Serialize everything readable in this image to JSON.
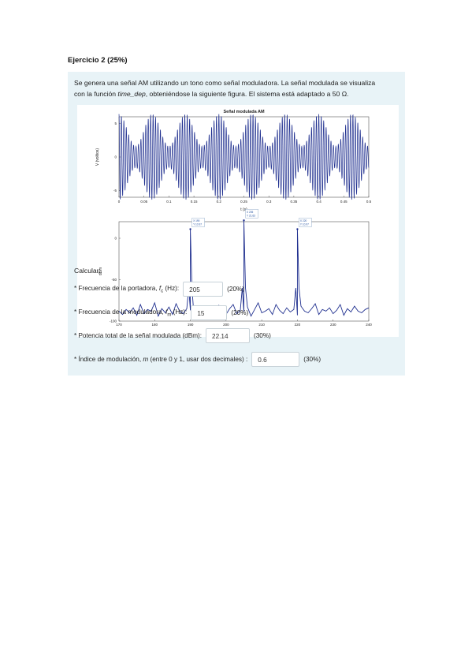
{
  "exercise": {
    "title": "Ejercicio 2 (25%)",
    "intro_line1": "Se genera una señal AM utilizando un tono como señal moduladora. La señal modulada se visualiza",
    "intro_line2_a": "con la función ",
    "intro_line2_fn": "time_dep",
    "intro_line2_b": ", obteniéndose la siguiente figura. El sistema está adaptado a 50 Ω.",
    "calcular": "Calcular:"
  },
  "questions": [
    {
      "label_pre": "* Frecuencia de la portadora, ",
      "var": "f",
      "sub": "c",
      "label_post": " (Hz):",
      "answer": "205",
      "weight": "(20%)"
    },
    {
      "label_pre": "* Frecuencia de la moduladora, ",
      "var": "f",
      "sub": "m",
      "label_post": " (Hz):",
      "answer": "15",
      "weight": "(20%)"
    },
    {
      "label_pre": "* Potencia total de la señal modulada (dBm):",
      "var": "",
      "sub": "",
      "label_post": "",
      "answer": "22.14",
      "weight": "(30%)"
    },
    {
      "label_pre": "* Índice de modulación, ",
      "var": "m",
      "sub": "",
      "label_post": " (entre 0 y 1, usar dos decimales) :",
      "answer": "0.6",
      "weight": "(30%)"
    }
  ],
  "chart_data": [
    {
      "type": "line",
      "title": "Señal modulada AM",
      "xlabel": "t (s)",
      "ylabel": "V (voltios)",
      "xlim": [
        0,
        0.5
      ],
      "ylim": [
        -6,
        6
      ],
      "x_ticks": [
        "0",
        "0.05",
        "0.1",
        "0.15",
        "0.2",
        "0.25",
        "0.3",
        "0.35",
        "0.4",
        "0.45",
        "0.5"
      ],
      "y_ticks": [
        "5",
        "0",
        "-5"
      ],
      "carrier_hz": 205,
      "modulating_hz": 15,
      "amplitude": 4,
      "modulation_index": 0.6,
      "color": "#1f2f8f"
    },
    {
      "type": "line",
      "xlabel": "Hz",
      "ylabel": "dBm",
      "xlim": [
        170,
        240
      ],
      "ylim": [
        -100,
        20
      ],
      "x_ticks": [
        "170",
        "180",
        "190",
        "200",
        "210",
        "220",
        "230",
        "240"
      ],
      "y_ticks": [
        "0",
        "-50",
        "-100"
      ],
      "peaks": [
        {
          "x": 190,
          "y": 10.97,
          "label_x": "X 190",
          "label_y": "Y 10.97"
        },
        {
          "x": 205,
          "y": 21.63,
          "label_x": "X 205",
          "label_y": "Y 21.63"
        },
        {
          "x": 220,
          "y": 10.97,
          "label_x": "X 220",
          "label_y": "Y 10.97"
        }
      ],
      "noise_floor": [
        -88,
        -92,
        -86,
        -90,
        -84,
        -93,
        -80,
        -91,
        -86,
        -88,
        -78,
        -94,
        -85,
        -90,
        -83,
        -92,
        -79,
        -88,
        -91,
        -85,
        -87,
        -93,
        -82,
        -89,
        -86,
        -90,
        -84,
        -95,
        -81,
        -88,
        -92,
        -85,
        -80,
        -91,
        -87,
        -89,
        -83,
        -94,
        -86,
        -78,
        -90,
        -88,
        -85,
        -92,
        -80,
        -87,
        -91,
        -84,
        -89,
        -86,
        -93,
        -82,
        -88,
        -90,
        -85,
        -79,
        -92,
        -86,
        -88,
        -84,
        -91,
        -87,
        -80,
        -93,
        -85,
        -89,
        -82,
        -88,
        -90,
        -86,
        -84
      ],
      "color": "#1f2f8f"
    }
  ]
}
